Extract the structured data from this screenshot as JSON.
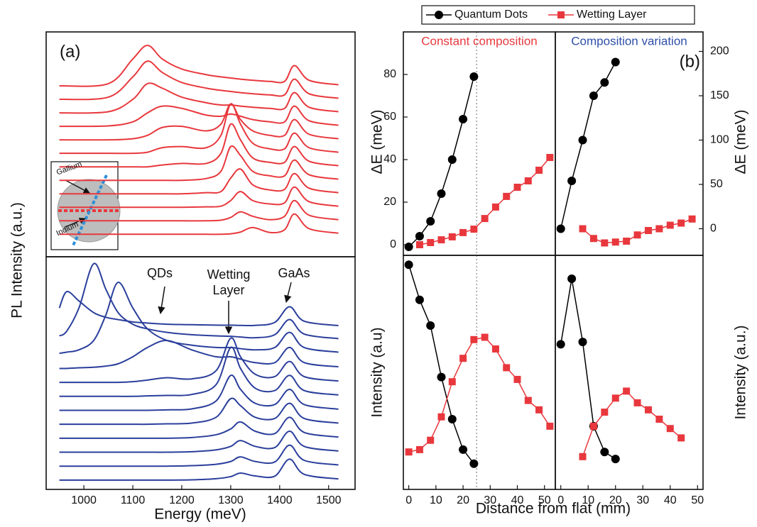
{
  "chart_data": [
    {
      "type": "line",
      "panel_label": "(a)",
      "ylabel": "PL Intensity (a.u.)",
      "color": "#e8383d",
      "inset_labels": [
        "Gallium",
        "Indium"
      ],
      "xlim": [
        923,
        1554
      ],
      "ylim": [
        0,
        100
      ],
      "x": [
        950,
        1050,
        1100,
        1130,
        1160,
        1200,
        1250,
        1280,
        1300,
        1320,
        1345,
        1380,
        1410,
        1430,
        1460,
        1520
      ],
      "series": [
        {
          "values": [
            10,
            10,
            10,
            10,
            10,
            10,
            10,
            10,
            10.2,
            11,
            13,
            10.8,
            12,
            19,
            12.5,
            10.5
          ]
        },
        {
          "values": [
            16,
            16,
            16,
            16,
            16,
            16,
            16,
            16.3,
            17.5,
            20,
            18,
            16.5,
            18,
            25,
            18.5,
            16.5
          ]
        },
        {
          "values": [
            22,
            22,
            22,
            22,
            22,
            22,
            22.2,
            22.5,
            25,
            29,
            25,
            23.5,
            24,
            31,
            24.5,
            22.5
          ]
        },
        {
          "values": [
            28,
            28,
            28,
            28,
            28,
            28,
            28.5,
            29,
            35,
            39,
            32,
            29.7,
            30,
            37,
            30.5,
            28.5
          ]
        },
        {
          "values": [
            34,
            34,
            34,
            34,
            34,
            34,
            34.8,
            38,
            49,
            45,
            38,
            36,
            36,
            43,
            36.5,
            34.5
          ]
        },
        {
          "values": [
            40,
            40,
            40,
            40,
            40.8,
            41.5,
            41.5,
            46,
            59,
            52,
            44,
            42,
            42,
            49,
            42.5,
            40.5
          ]
        },
        {
          "values": [
            46,
            46,
            46,
            46.5,
            48.5,
            49,
            48.5,
            54,
            68,
            59,
            50.5,
            48,
            48,
            55,
            48.5,
            46.5
          ]
        },
        {
          "values": [
            52,
            52,
            52.5,
            54,
            57.5,
            58,
            56,
            59,
            68,
            61,
            56,
            54,
            54,
            61,
            54.5,
            52.5
          ]
        },
        {
          "values": [
            58,
            58.2,
            60,
            64,
            67,
            66,
            63,
            62.5,
            63.5,
            62.5,
            61,
            60,
            60,
            67,
            60.5,
            58.5
          ]
        },
        {
          "values": [
            64,
            64.5,
            70,
            77,
            75,
            71,
            68.5,
            67.5,
            67.5,
            67,
            66.5,
            66,
            66,
            73,
            66.5,
            64.5
          ]
        },
        {
          "values": [
            70,
            71,
            80,
            87,
            82,
            77.5,
            75,
            74,
            73.5,
            73,
            72.5,
            72,
            72,
            79,
            72.5,
            70.5
          ]
        },
        {
          "values": [
            76,
            77,
            88,
            94,
            88,
            83.5,
            81,
            80,
            79.5,
            79,
            78.5,
            78,
            78,
            85,
            78.5,
            76.5
          ]
        }
      ]
    },
    {
      "type": "line",
      "xlabel": "Energy (meV)",
      "color": "#2b3f9c",
      "annotations": [
        "QDs",
        "Wetting Layer",
        "GaAs"
      ],
      "xlim": [
        923,
        1554
      ],
      "ylim": [
        0,
        100
      ],
      "xticks": [
        1000,
        1100,
        1200,
        1300,
        1400,
        1500
      ],
      "x": [
        950,
        965,
        990,
        1020,
        1045,
        1070,
        1100,
        1130,
        1170,
        1220,
        1270,
        1300,
        1320,
        1350,
        1390,
        1420,
        1450,
        1520
      ],
      "series": [
        {
          "values": [
            4,
            4,
            4,
            4,
            4,
            4,
            4,
            4,
            4,
            4.1,
            4.6,
            5.5,
            7,
            5.8,
            5.7,
            13,
            6.5,
            4.5
          ]
        },
        {
          "values": [
            10,
            10,
            10,
            10,
            10,
            10,
            10,
            10,
            10,
            10.2,
            10.8,
            12,
            14,
            12,
            11.8,
            19,
            12.5,
            10.5
          ]
        },
        {
          "values": [
            16,
            16,
            16,
            16,
            16,
            16,
            16,
            16,
            16,
            16.2,
            17,
            18.5,
            21,
            18.5,
            18,
            25,
            18.5,
            16.5
          ]
        },
        {
          "values": [
            22,
            22,
            22,
            22,
            22,
            22,
            22,
            22,
            22,
            22.3,
            23.5,
            26,
            29,
            25,
            24,
            31,
            24.5,
            22.5
          ]
        },
        {
          "values": [
            28,
            28,
            28,
            28,
            28,
            28,
            28,
            28,
            28.2,
            28.5,
            31,
            39,
            36,
            31,
            30.5,
            37,
            30.5,
            28.5
          ]
        },
        {
          "values": [
            34,
            34,
            34,
            34,
            34,
            34,
            34,
            34,
            34.2,
            34.6,
            38,
            49,
            43,
            37,
            36.5,
            43,
            36.5,
            34.5
          ]
        },
        {
          "values": [
            40,
            40,
            40,
            40,
            40,
            40,
            40,
            40.2,
            40.4,
            40.8,
            45,
            61,
            52,
            43.5,
            42.5,
            49,
            42.5,
            40.6
          ]
        },
        {
          "values": [
            46,
            46,
            46,
            46,
            46,
            46,
            46.3,
            47,
            48,
            47.5,
            51,
            65,
            57,
            49.5,
            48.5,
            55,
            48.5,
            46.6
          ]
        },
        {
          "values": [
            52,
            52,
            52.3,
            52.5,
            53,
            54,
            57,
            61,
            64,
            60,
            57,
            57,
            56,
            54.5,
            54.5,
            61,
            54.5,
            52.7
          ]
        },
        {
          "values": [
            58.5,
            59,
            60,
            64,
            75,
            89,
            78,
            69,
            64,
            62,
            61,
            61,
            60.5,
            60,
            61,
            67.5,
            61,
            59
          ]
        },
        {
          "values": [
            66,
            68,
            78,
            97,
            86,
            76,
            71,
            69,
            67.5,
            66.5,
            66,
            65.8,
            65.5,
            65.2,
            66.5,
            73,
            66.8,
            64.8
          ]
        },
        {
          "values": [
            78,
            85,
            81,
            76,
            74,
            73,
            72,
            71.5,
            71,
            70.8,
            70.6,
            70.6,
            70.5,
            70.5,
            71.8,
            78.5,
            72.3,
            70.4
          ]
        }
      ]
    },
    {
      "type": "line",
      "title": "Constant composition",
      "title_color": "#e8383d",
      "ylabel": "ΔE (meV)",
      "legend": "top",
      "xlim": [
        -2,
        54
      ],
      "ylim": [
        -5,
        100
      ],
      "yticks": [
        0,
        20,
        40,
        60,
        80
      ],
      "vline": 25,
      "series": [
        {
          "name": "Quantum Dots",
          "color": "#000000",
          "marker": "circle",
          "x": [
            0,
            4,
            8,
            12,
            16,
            20,
            24
          ],
          "values": [
            -1,
            4,
            11,
            24,
            40,
            59,
            79
          ]
        },
        {
          "name": "Wetting Layer",
          "color": "#e8383d",
          "marker": "square",
          "x": [
            4,
            8,
            12,
            16,
            20,
            24,
            28,
            32,
            36,
            40,
            44,
            48,
            52
          ],
          "values": [
            0,
            1,
            2.3,
            3.7,
            5.7,
            7.3,
            12.3,
            17.7,
            22.7,
            27,
            30,
            35,
            41
          ]
        }
      ]
    },
    {
      "type": "line",
      "title": "Composition variation",
      "title_color": "#2e4fa8",
      "panel_label": "(b)",
      "ylabel": "ΔE (meV)",
      "y_side": "right",
      "xlim": [
        -2,
        52
      ],
      "ylim": [
        -30,
        222
      ],
      "yticks": [
        0,
        50,
        100,
        150,
        200
      ],
      "series": [
        {
          "color": "#000000",
          "marker": "circle",
          "x": [
            0,
            4,
            8,
            12,
            16,
            20
          ],
          "values": [
            0,
            54,
            100,
            150,
            165,
            188
          ]
        },
        {
          "color": "#e8383d",
          "marker": "square",
          "x": [
            8,
            12,
            16,
            20,
            24,
            28,
            32,
            36,
            40,
            44,
            48
          ],
          "values": [
            0,
            -11,
            -16,
            -15,
            -14,
            -7,
            -2,
            0,
            4,
            6.4,
            11
          ]
        }
      ]
    },
    {
      "type": "line",
      "ylabel": "Intensity (a.u)",
      "xlabel": "Distance from flat (mm)",
      "xlim": [
        -2,
        54
      ],
      "ylim": [
        0,
        100
      ],
      "xticks": [
        0,
        10,
        20,
        30,
        40,
        50
      ],
      "vline": 25,
      "series": [
        {
          "color": "#000000",
          "marker": "circle",
          "x": [
            0,
            4,
            8,
            12,
            16,
            20,
            24
          ],
          "values": [
            96,
            81,
            70,
            48,
            30,
            17,
            11
          ]
        },
        {
          "color": "#e8383d",
          "marker": "square",
          "x": [
            0,
            4,
            8,
            12,
            16,
            20,
            24,
            28,
            32,
            36,
            40,
            44,
            48,
            52
          ],
          "values": [
            16,
            17,
            21,
            31,
            46,
            56,
            64,
            65,
            60,
            52,
            47,
            38,
            34,
            27
          ]
        }
      ]
    },
    {
      "type": "line",
      "ylabel": "Intensity (a.u.)",
      "y_side": "right",
      "xlim": [
        -2,
        52
      ],
      "ylim": [
        0,
        100
      ],
      "xticks": [
        0,
        10,
        20,
        30,
        40,
        50
      ],
      "series": [
        {
          "color": "#000000",
          "marker": "circle",
          "x": [
            0,
            4,
            8,
            12,
            16,
            20
          ],
          "values": [
            62,
            90,
            63,
            27,
            16,
            13
          ]
        },
        {
          "color": "#e8383d",
          "marker": "square",
          "x": [
            8,
            12,
            16,
            20,
            24,
            28,
            32,
            36,
            40,
            44
          ],
          "values": [
            14,
            27,
            33,
            39,
            42,
            37,
            34,
            30,
            26,
            22
          ]
        }
      ]
    }
  ]
}
